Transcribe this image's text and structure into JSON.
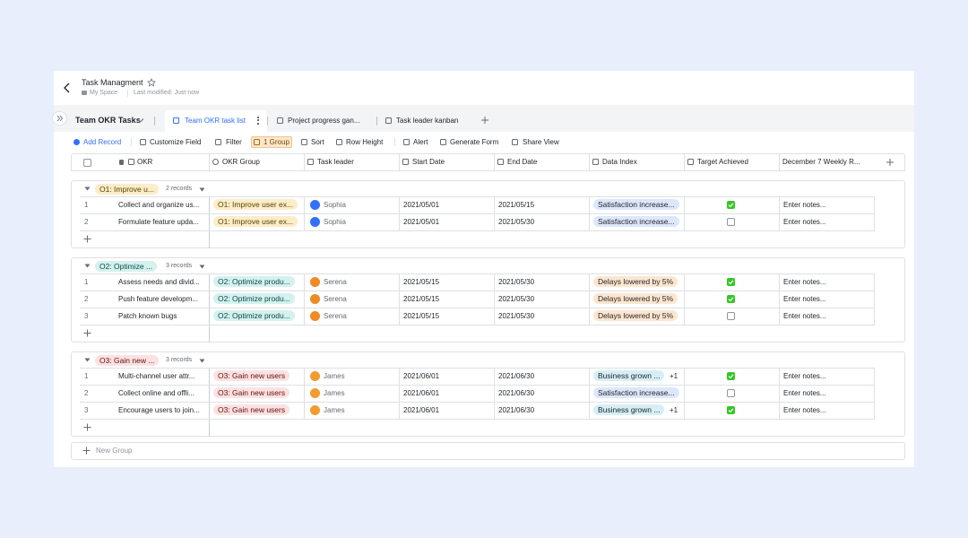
{
  "header": {
    "title": "Task Managment",
    "location": "My Space",
    "last_modified": "Last modified: Just now"
  },
  "tabs": {
    "space": "Team OKR Tasks",
    "views": [
      "Team OKR task list",
      "Project progress gan...",
      "Task leader kanban"
    ],
    "active": 0
  },
  "toolbar": [
    "Add Record",
    "Customize Field",
    "Filter",
    "1 Group",
    "Sort",
    "Row Height",
    "Alert",
    "Generate Form",
    "Share View"
  ],
  "table": {
    "columns": [
      "OKR",
      "OKR Group",
      "Task leader",
      "Start Date",
      "End Date",
      "Data Index",
      "Target Achieved",
      "December 7 Weekly R..."
    ],
    "groups": [
      {
        "label": "O1: Improve u...",
        "count": "2 records",
        "tag_color": "#fbedc8",
        "text_color": "#5c4200",
        "rows": [
          {
            "no": 1,
            "okr": "Collect and organize us...",
            "group": "O1: Improve user ex...",
            "leader": "Sophia",
            "avatar_color": "#3370ff",
            "start": "2021/05/01",
            "end": "2021/05/15",
            "data_index": "Satisfaction increase...",
            "index_color": "#dde7fb",
            "achieved": true,
            "notes": "Enter notes..."
          },
          {
            "no": 2,
            "okr": "Formulate feature upda...",
            "group": "O1: Improve user ex...",
            "leader": "Sophia",
            "avatar_color": "#3370ff",
            "start": "2021/05/01",
            "end": "2021/05/30",
            "data_index": "Satisfaction increase...",
            "index_color": "#dde7fb",
            "achieved": false,
            "notes": "Enter notes..."
          }
        ]
      },
      {
        "label": "O2: Optimize ...",
        "count": "3 records",
        "tag_color": "#d4f1ee",
        "text_color": "#0b4a44",
        "rows": [
          {
            "no": 1,
            "okr": "Assess needs and divid...",
            "group": "O2: Optimize produ...",
            "leader": "Serena",
            "avatar_color": "#f08a24",
            "start": "2021/05/15",
            "end": "2021/05/30",
            "data_index": "Delays lowered by 5%",
            "index_color": "#fde6cf",
            "achieved": true,
            "notes": "Enter notes..."
          },
          {
            "no": 2,
            "okr": "Push feature developm...",
            "group": "O2: Optimize produ...",
            "leader": "Serena",
            "avatar_color": "#f08a24",
            "start": "2021/05/15",
            "end": "2021/05/30",
            "data_index": "Delays lowered by 5%",
            "index_color": "#fde6cf",
            "achieved": true,
            "notes": "Enter notes..."
          },
          {
            "no": 3,
            "okr": "Patch known bugs",
            "group": "O2: Optimize produ...",
            "leader": "Serena",
            "avatar_color": "#f08a24",
            "start": "2021/05/15",
            "end": "2021/05/30",
            "data_index": "Delays lowered by 5%",
            "index_color": "#fde6cf",
            "achieved": false,
            "notes": "Enter notes..."
          }
        ]
      },
      {
        "label": "O3: Gain new ...",
        "count": "3 records",
        "tag_color": "#fde1e1",
        "text_color": "#5e1010",
        "rows": [
          {
            "no": 1,
            "okr": "Multi-channel user attr...",
            "group": "O3: Gain new users",
            "leader": "James",
            "avatar_color": "#f29b2e",
            "start": "2021/06/01",
            "end": "2021/06/30",
            "data_index": "Business grown ...",
            "more": "+1",
            "index_color": "#d6eff5",
            "achieved": true,
            "notes": "Enter notes..."
          },
          {
            "no": 2,
            "okr": "Collect online and offli...",
            "group": "O3: Gain new users",
            "leader": "James",
            "avatar_color": "#f29b2e",
            "start": "2021/06/01",
            "end": "2021/06/30",
            "data_index": "Satisfaction increase...",
            "index_color": "#dde7fb",
            "achieved": false,
            "notes": "Enter notes..."
          },
          {
            "no": 3,
            "okr": "Encourage users to join...",
            "group": "O3: Gain new users",
            "leader": "James",
            "avatar_color": "#f29b2e",
            "start": "2021/06/01",
            "end": "2021/06/30",
            "data_index": "Business grown ...",
            "more": "+1",
            "index_color": "#d6eff5",
            "achieved": true,
            "notes": "Enter notes..."
          }
        ]
      }
    ],
    "new_group": "New Group"
  }
}
